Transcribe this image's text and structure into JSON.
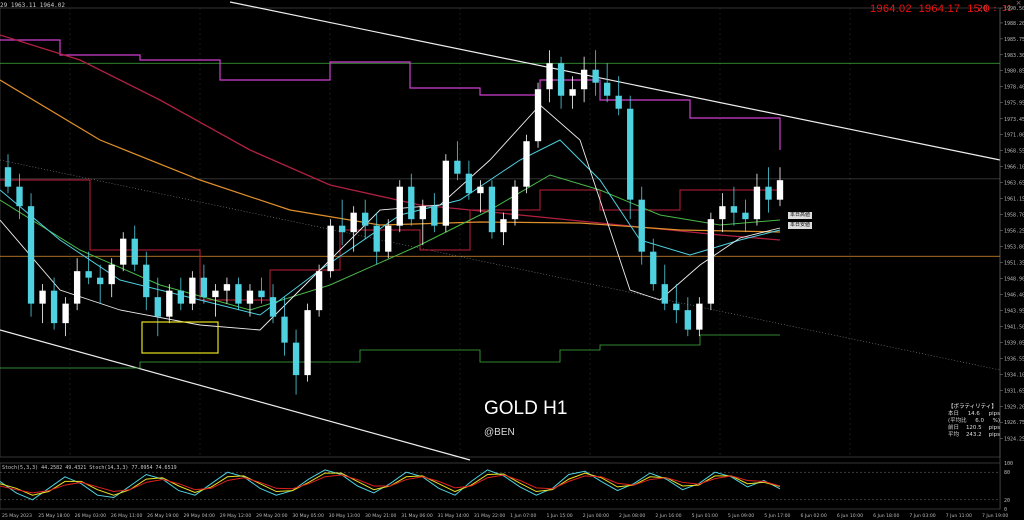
{
  "header": {
    "symbol_line": "29 1963.11 1964.02",
    "bid": "1964.02",
    "ask": "1964.17",
    "spread": "15.0",
    "clock": "20 : 31"
  },
  "watermark": {
    "title": "GOLD H1",
    "handle": "@BEN"
  },
  "tags": {
    "today_high": "本日高値",
    "today_low": "本日安値"
  },
  "volatility_panel": {
    "title": "【ボラティリティ】",
    "rows": [
      {
        "label": "本日",
        "value": "14.6",
        "unit": "pips"
      },
      {
        "label": "(平均比",
        "value": "6.0",
        "unit": "%)"
      },
      {
        "label": "前日",
        "value": "120.5",
        "unit": "pips"
      },
      {
        "label": "平均",
        "value": "243.2",
        "unit": "pips"
      }
    ]
  },
  "stoch_header": "Stoch(5,3,3) 44.2582 49.4321  Stoch(14,3,3) 77.0954 74.6519",
  "chart_data": [
    {
      "type": "candlestick",
      "title": "GOLD H1",
      "ylim": [
        1921.4,
        1990.5
      ],
      "y_ticks": [
        "1990.50",
        "1988.20",
        "1985.75",
        "1983.30",
        "1980.85",
        "1978.40",
        "1975.95",
        "1973.45",
        "1971.00",
        "1968.55",
        "1966.10",
        "1963.65",
        "1961.15",
        "1958.70",
        "1956.25",
        "1953.80",
        "1951.35",
        "1948.90",
        "1946.40",
        "1943.95",
        "1941.50",
        "1939.05",
        "1936.55",
        "1934.10",
        "1931.65",
        "1929.20",
        "1926.75",
        "1924.25"
      ],
      "x_labels": [
        "25 May 2023",
        "25 May 18:00",
        "26 May 03:00",
        "26 May 11:00",
        "26 May 19:00",
        "29 May 04:00",
        "29 May 12:00",
        "29 May 20:00",
        "30 May 05:00",
        "30 May 13:00",
        "30 May 21:00",
        "31 May 06:00",
        "31 May 14:00",
        "31 May 22:00",
        "1 Jun 07:00",
        "1 Jun 15:00",
        "2 Jun 00:00",
        "2 Jun 08:00",
        "2 Jun 16:00",
        "5 Jun 01:00",
        "5 Jun 09:00",
        "5 Jun 17:00",
        "6 Jun 02:00",
        "6 Jun 10:00",
        "6 Jun 18:00",
        "7 Jun 03:00",
        "7 Jun 11:00",
        "7 Jun 19:00"
      ],
      "price_markers": {
        "green": 1982.0,
        "orange": 1952.3,
        "current": 1964.2
      },
      "candles": [
        [
          1966,
          1968,
          1962,
          1963
        ],
        [
          1963,
          1965,
          1958,
          1960
        ],
        [
          1960,
          1962,
          1943,
          1945
        ],
        [
          1945,
          1948,
          1942,
          1947
        ],
        [
          1947,
          1949,
          1941,
          1942
        ],
        [
          1942,
          1946,
          1940,
          1945
        ],
        [
          1945,
          1952,
          1944,
          1950
        ],
        [
          1950,
          1953,
          1948,
          1949
        ],
        [
          1949,
          1951,
          1945,
          1948
        ],
        [
          1948,
          1952,
          1946,
          1951
        ],
        [
          1951,
          1956,
          1950,
          1955
        ],
        [
          1955,
          1957,
          1950,
          1951
        ],
        [
          1951,
          1953,
          1944,
          1946
        ],
        [
          1946,
          1949,
          1940,
          1943
        ],
        [
          1943,
          1948,
          1942,
          1947
        ],
        [
          1947,
          1949,
          1944,
          1945
        ],
        [
          1945,
          1950,
          1944,
          1949
        ],
        [
          1949,
          1951,
          1945,
          1946
        ],
        [
          1946,
          1948,
          1943,
          1947
        ],
        [
          1947,
          1949,
          1945,
          1948
        ],
        [
          1948,
          1949,
          1944,
          1945
        ],
        [
          1945,
          1948,
          1943,
          1947
        ],
        [
          1947,
          1949,
          1945,
          1946
        ],
        [
          1946,
          1948,
          1942,
          1943
        ],
        [
          1943,
          1946,
          1937,
          1939
        ],
        [
          1939,
          1941,
          1931,
          1934
        ],
        [
          1934,
          1945,
          1933,
          1944
        ],
        [
          1944,
          1951,
          1943,
          1950
        ],
        [
          1950,
          1958,
          1949,
          1957
        ],
        [
          1957,
          1961,
          1954,
          1956
        ],
        [
          1956,
          1960,
          1953,
          1959
        ],
        [
          1959,
          1961,
          1955,
          1957
        ],
        [
          1957,
          1959,
          1951,
          1953
        ],
        [
          1953,
          1958,
          1952,
          1957
        ],
        [
          1957,
          1964,
          1956,
          1963
        ],
        [
          1963,
          1965,
          1957,
          1958
        ],
        [
          1958,
          1961,
          1954,
          1960
        ],
        [
          1960,
          1962,
          1956,
          1957
        ],
        [
          1957,
          1968,
          1956,
          1967
        ],
        [
          1967,
          1970,
          1964,
          1965
        ],
        [
          1965,
          1967,
          1961,
          1962
        ],
        [
          1962,
          1964,
          1959,
          1963
        ],
        [
          1963,
          1964,
          1955,
          1956
        ],
        [
          1956,
          1959,
          1954,
          1958
        ],
        [
          1958,
          1964,
          1957,
          1963
        ],
        [
          1963,
          1971,
          1962,
          1970
        ],
        [
          1970,
          1979,
          1969,
          1978
        ],
        [
          1978,
          1984,
          1976,
          1982
        ],
        [
          1982,
          1983,
          1975,
          1977
        ],
        [
          1977,
          1980,
          1975,
          1978
        ],
        [
          1978,
          1983,
          1976,
          1981
        ],
        [
          1981,
          1984,
          1977,
          1979
        ],
        [
          1979,
          1982,
          1976,
          1977
        ],
        [
          1977,
          1980,
          1974,
          1975
        ],
        [
          1975,
          1977,
          1958,
          1961
        ],
        [
          1961,
          1963,
          1951,
          1953
        ],
        [
          1953,
          1955,
          1947,
          1948
        ],
        [
          1948,
          1951,
          1944,
          1945
        ],
        [
          1945,
          1948,
          1942,
          1944
        ],
        [
          1944,
          1946,
          1940,
          1941
        ],
        [
          1941,
          1946,
          1940,
          1945
        ],
        [
          1945,
          1959,
          1944,
          1958
        ],
        [
          1958,
          1962,
          1956,
          1960
        ],
        [
          1960,
          1963,
          1957,
          1959
        ],
        [
          1959,
          1961,
          1956,
          1958
        ],
        [
          1958,
          1965,
          1957,
          1963
        ],
        [
          1963,
          1966,
          1959,
          1961
        ],
        [
          1961,
          1966,
          1960,
          1964
        ]
      ]
    },
    {
      "type": "line",
      "title": "Stochastic",
      "ylim": [
        0,
        100
      ],
      "y_ticks": [
        "100",
        "80",
        "20",
        "0"
      ],
      "series": [
        {
          "values": [
            60,
            35,
            20,
            45,
            70,
            55,
            30,
            25,
            50,
            75,
            65,
            40,
            30,
            55,
            80,
            70,
            45,
            30,
            40,
            65,
            85,
            75,
            50,
            35,
            55,
            80,
            70,
            45,
            30,
            60,
            85,
            72,
            48,
            30,
            45,
            75,
            82,
            60,
            40,
            55,
            78,
            65,
            42,
            55,
            80,
            70,
            48,
            62,
            44
          ]
        },
        {
          "values": [
            55,
            45,
            30,
            38,
            60,
            60,
            42,
            30,
            42,
            65,
            68,
            50,
            36,
            48,
            70,
            72,
            55,
            38,
            40,
            58,
            78,
            78,
            60,
            42,
            50,
            70,
            72,
            55,
            38,
            52,
            75,
            76,
            56,
            38,
            42,
            65,
            78,
            68,
            48,
            52,
            70,
            68,
            50,
            52,
            72,
            72,
            55,
            58,
            49
          ]
        },
        {
          "values": [
            50,
            42,
            35,
            40,
            52,
            58,
            48,
            38,
            42,
            58,
            64,
            55,
            42,
            45,
            62,
            68,
            58,
            45,
            44,
            55,
            70,
            74,
            64,
            50,
            50,
            64,
            70,
            60,
            46,
            50,
            68,
            74,
            62,
            46,
            44,
            60,
            72,
            70,
            56,
            52,
            64,
            68,
            58,
            54,
            66,
            72,
            62,
            60,
            50
          ]
        }
      ]
    }
  ],
  "colors": {
    "background": "#000000",
    "bull_candle": "#ffffff",
    "bear_candle": "#4fd1e0",
    "ma_magenta": "#e040e0",
    "ma_red": "#c0203a",
    "ma_orange": "#e0902a",
    "ma_green": "#4ab84a",
    "highlight_box": "#e8e020"
  }
}
